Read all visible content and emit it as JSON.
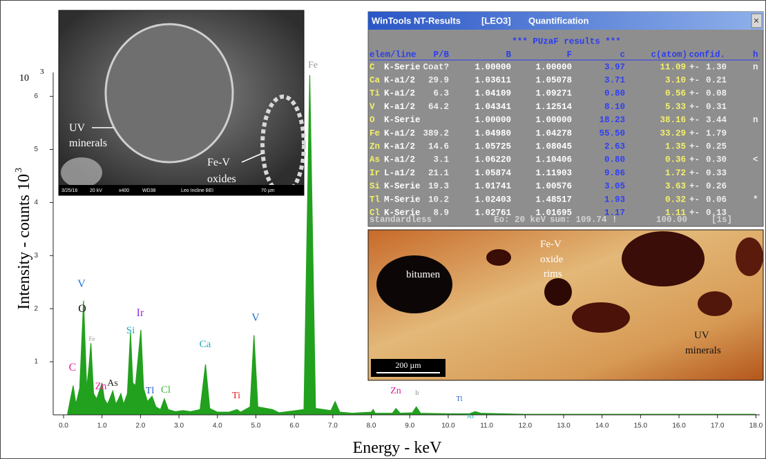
{
  "chart_data": {
    "type": "area",
    "x": [
      0.1,
      0.18,
      0.25,
      0.32,
      0.42,
      0.52,
      0.6,
      0.66,
      0.71,
      0.78,
      0.86,
      0.93,
      1.0,
      1.06,
      1.14,
      1.2,
      1.28,
      1.36,
      1.43,
      1.49,
      1.56,
      1.66,
      1.74,
      1.8,
      1.87,
      1.93,
      2.01,
      2.08,
      2.18,
      2.3,
      2.4,
      2.52,
      2.62,
      2.72,
      2.9,
      3.1,
      3.3,
      3.55,
      3.69,
      3.8,
      4.0,
      4.3,
      4.51,
      4.6,
      4.85,
      4.95,
      5.05,
      5.43,
      5.6,
      6.25,
      6.4,
      6.55,
      6.95,
      7.06,
      7.18,
      7.5,
      8.0,
      8.05,
      8.1,
      8.55,
      8.64,
      8.75,
      9.07,
      9.17,
      9.28,
      10.0,
      10.55,
      10.7,
      10.85,
      12,
      14,
      16,
      18
    ],
    "values": [
      0,
      0.3,
      0.55,
      0.2,
      0.5,
      2.15,
      0.5,
      0.9,
      1.35,
      0.4,
      0.3,
      0.45,
      0.6,
      0.3,
      0.2,
      0.3,
      0.45,
      0.2,
      0.3,
      0.4,
      0.2,
      0.4,
      1.55,
      0.6,
      0.55,
      1.0,
      1.6,
      0.5,
      0.25,
      0.35,
      0.15,
      0.1,
      0.3,
      0.1,
      0.06,
      0.08,
      0.06,
      0.1,
      0.95,
      0.12,
      0.05,
      0.05,
      0.1,
      0.05,
      0.15,
      1.5,
      0.15,
      0.1,
      0.04,
      0.1,
      6.4,
      0.12,
      0.08,
      0.25,
      0.05,
      0.03,
      0.05,
      0.1,
      0.03,
      0.03,
      0.12,
      0.03,
      0.04,
      0.15,
      0.03,
      0.02,
      0.02,
      0.06,
      0.03,
      0.01,
      0.01,
      0.01,
      0.01
    ],
    "color": "#22a11e",
    "xlim": [
      -0.27,
      18.1
    ],
    "ylim": [
      0,
      6.45
    ],
    "xticks": [
      {
        "value": 0,
        "label": "0.0"
      },
      {
        "value": 1,
        "label": "1.0"
      },
      {
        "value": 2,
        "label": "2.0"
      },
      {
        "value": 3,
        "label": "3.0"
      },
      {
        "value": 4,
        "label": "4.0"
      },
      {
        "value": 5,
        "label": "5.0"
      },
      {
        "value": 6,
        "label": "6.0"
      },
      {
        "value": 7,
        "label": "7.0"
      },
      {
        "value": 8,
        "label": "8.0"
      },
      {
        "value": 9,
        "label": "9.0"
      },
      {
        "value": 10,
        "label": "10.0"
      },
      {
        "value": 11,
        "label": "11.0"
      },
      {
        "value": 12,
        "label": "12.0"
      },
      {
        "value": 13,
        "label": "13.0"
      },
      {
        "value": 14,
        "label": "14.0"
      },
      {
        "value": 15,
        "label": "15.0"
      },
      {
        "value": 16,
        "label": "16.0"
      },
      {
        "value": 17,
        "label": "17.0"
      },
      {
        "value": 18,
        "label": "18.0"
      }
    ],
    "yticks": [
      1,
      2,
      3,
      4,
      5,
      6
    ],
    "y_scale_base": "10",
    "y_scale_exp": "3",
    "x_label": "Energy - keV",
    "y_label": "Intensity - counts 10",
    "y_label_sup": "3",
    "annotations": [
      {
        "text": "C",
        "color": "#e0209a"
      },
      {
        "text": "O",
        "color": "#111111"
      },
      {
        "text": "V",
        "color": "#1f77d0"
      },
      {
        "text": "Fe",
        "color": "#9a9a9a"
      },
      {
        "text": "Si",
        "color": "#19aebc"
      },
      {
        "text": "Ir",
        "color": "#8a2be2"
      },
      {
        "text": "Zn",
        "color": "#e0209a"
      },
      {
        "text": "As",
        "color": "#222222"
      },
      {
        "text": "Tl",
        "color": "#2255cc"
      },
      {
        "text": "Cl",
        "color": "#3dba3d"
      },
      {
        "text": "Ca",
        "color": "#19aebc"
      },
      {
        "text": "Ti",
        "color": "#e02020"
      },
      {
        "text": "V",
        "color": "#1f77d0"
      },
      {
        "text": "Fe",
        "color": "#9a9a9a"
      },
      {
        "text": "Zn",
        "color": "#e0209a"
      },
      {
        "text": "Ir",
        "color": "#888888"
      },
      {
        "text": "Tl",
        "color": "#2255cc"
      },
      {
        "text": "As",
        "color": "#19aebc"
      }
    ]
  },
  "sem": {
    "labels": [
      "UV",
      "minerals",
      "Fe-V",
      "oxides"
    ],
    "footer": [
      "3/25/16",
      "20 kV",
      "x400",
      "WD38",
      "Leo Incline BEI",
      "70 µm"
    ]
  },
  "results": {
    "title": "WinTools NT-Results",
    "project": "[LEO3]",
    "mode": "Quantification",
    "close": "×",
    "heading": "*** PUzaF results ***",
    "columns": [
      "elem/line",
      "P/B",
      "B",
      "F",
      "c",
      "c(atom)",
      "confid.",
      "h"
    ],
    "rows": [
      {
        "elem": "C",
        "line": "K-Serie",
        "pb": "Coat?",
        "b": "1.00000",
        "f": "1.00000",
        "c": "3.97",
        "atom": "11.09",
        "pm": "+-",
        "conf": "1.30",
        "flag": "n"
      },
      {
        "elem": "Ca",
        "line": "K-a1/2",
        "pb": "29.9",
        "b": "1.03611",
        "f": "1.05078",
        "c": "3.71",
        "atom": "3.10",
        "pm": "+-",
        "conf": "0.21"
      },
      {
        "elem": "Ti",
        "line": "K-a1/2",
        "pb": "6.3",
        "b": "1.04109",
        "f": "1.09271",
        "c": "0.80",
        "atom": "0.56",
        "pm": "+-",
        "conf": "0.08"
      },
      {
        "elem": "V",
        "line": "K-a1/2",
        "pb": "64.2",
        "b": "1.04341",
        "f": "1.12514",
        "c": "8.10",
        "atom": "5.33",
        "pm": "+-",
        "conf": "0.31"
      },
      {
        "elem": "O",
        "line": "K-Serie",
        "b": "1.00000",
        "f": "1.00000",
        "c": "18.23",
        "atom": "38.16",
        "pm": "+-",
        "conf": "3.44",
        "flag": "n"
      },
      {
        "elem": "Fe",
        "line": "K-a1/2",
        "pb": "389.2",
        "b": "1.04980",
        "f": "1.04278",
        "c": "55.50",
        "atom": "33.29",
        "pm": "+-",
        "conf": "1.79"
      },
      {
        "elem": "Zn",
        "line": "K-a1/2",
        "pb": "14.6",
        "b": "1.05725",
        "f": "1.08045",
        "c": "2.63",
        "atom": "1.35",
        "pm": "+-",
        "conf": "0.25"
      },
      {
        "elem": "As",
        "line": "K-a1/2",
        "pb": "3.1",
        "b": "1.06220",
        "f": "1.10406",
        "c": "0.80",
        "atom": "0.36",
        "pm": "+-",
        "conf": "0.30",
        "flag": "<"
      },
      {
        "elem": "Ir",
        "line": "L-a1/2",
        "pb": "21.1",
        "b": "1.05874",
        "f": "1.11903",
        "c": "9.86",
        "atom": "1.72",
        "pm": "+-",
        "conf": "0.33"
      },
      {
        "elem": "Si",
        "line": "K-Serie",
        "pb": "19.3",
        "b": "1.01741",
        "f": "1.00576",
        "c": "3.05",
        "atom": "3.63",
        "pm": "+-",
        "conf": "0.26"
      },
      {
        "elem": "Tl",
        "line": "M-Serie",
        "pb": "10.2",
        "b": "1.02403",
        "f": "1.48517",
        "c": "1.93",
        "atom": "0.32",
        "pm": "+-",
        "conf": "0.06",
        "flag": "*"
      },
      {
        "elem": "Cl",
        "line": "K-Serie",
        "pb": "8.9",
        "b": "1.02761",
        "f": "1.01695",
        "c": "1.17",
        "atom": "1.11",
        "pm": "+-",
        "conf": "0.13"
      }
    ],
    "footer": [
      "standardless",
      "Eo: 20 keV",
      "sum: 109.74 !",
      "100.00",
      "[1s]"
    ]
  },
  "photo": {
    "labels": [
      "bitumen",
      "Fe-V",
      "oxide",
      "rims",
      "UV",
      "minerals"
    ],
    "scale": "200 µm"
  }
}
